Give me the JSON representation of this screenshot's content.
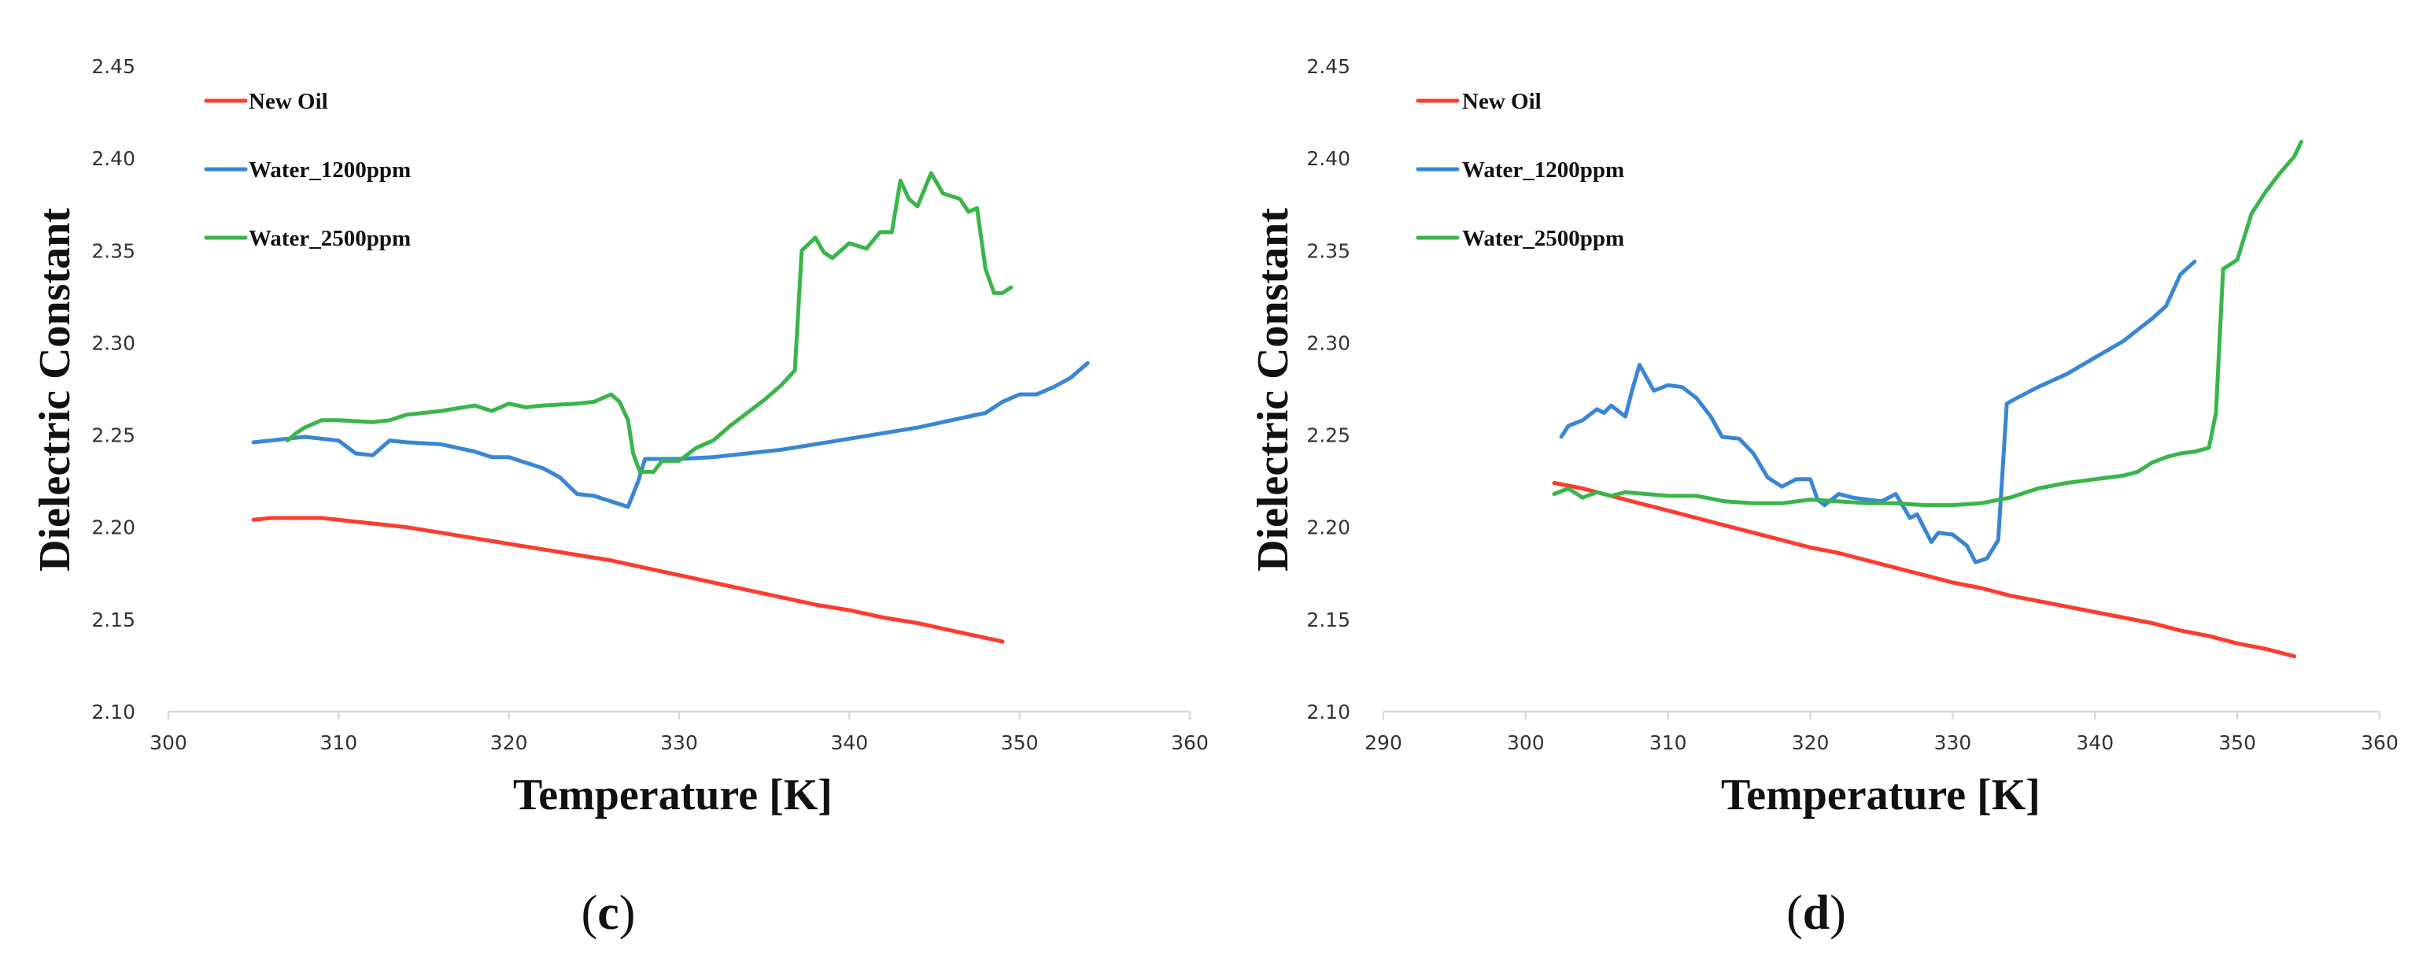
{
  "colors": {
    "New Oil": "#ff3b30",
    "Water_1200ppm": "#3a86d4",
    "Water_2500ppm": "#39b54a"
  },
  "chart_data": [
    {
      "type": "line",
      "panel_label": "c",
      "xlabel": "Temperature [K]",
      "ylabel": "Dielectric Constant",
      "xlim": [
        300,
        360
      ],
      "ylim": [
        2.1,
        2.45
      ],
      "xticks": [
        "300",
        "310",
        "320",
        "330",
        "340",
        "350",
        "360"
      ],
      "yticks": [
        "2.10",
        "2.15",
        "2.20",
        "2.25",
        "2.30",
        "2.35",
        "2.40",
        "2.45"
      ],
      "legend_position": "top-left",
      "series": [
        {
          "name": "New Oil",
          "points": [
            [
              305,
              2.204
            ],
            [
              306,
              2.205
            ],
            [
              307,
              2.205
            ],
            [
              308,
              2.205
            ],
            [
              309,
              2.205
            ],
            [
              310,
              2.204
            ],
            [
              312,
              2.202
            ],
            [
              314,
              2.2
            ],
            [
              316,
              2.197
            ],
            [
              318,
              2.194
            ],
            [
              320,
              2.191
            ],
            [
              322,
              2.188
            ],
            [
              324,
              2.185
            ],
            [
              326,
              2.182
            ],
            [
              328,
              2.178
            ],
            [
              330,
              2.174
            ],
            [
              332,
              2.17
            ],
            [
              334,
              2.166
            ],
            [
              336,
              2.162
            ],
            [
              338,
              2.158
            ],
            [
              340,
              2.155
            ],
            [
              342,
              2.151
            ],
            [
              344,
              2.148
            ],
            [
              346,
              2.144
            ],
            [
              348,
              2.14
            ],
            [
              349,
              2.138
            ]
          ]
        },
        {
          "name": "Water_1200ppm",
          "points": [
            [
              305,
              2.246
            ],
            [
              306,
              2.247
            ],
            [
              307,
              2.248
            ],
            [
              308,
              2.249
            ],
            [
              309,
              2.248
            ],
            [
              310,
              2.247
            ],
            [
              311,
              2.24
            ],
            [
              312,
              2.239
            ],
            [
              313,
              2.247
            ],
            [
              314,
              2.246
            ],
            [
              316,
              2.245
            ],
            [
              318,
              2.241
            ],
            [
              319,
              2.238
            ],
            [
              320,
              2.238
            ],
            [
              322,
              2.232
            ],
            [
              323,
              2.227
            ],
            [
              324,
              2.218
            ],
            [
              325,
              2.217
            ],
            [
              326,
              2.214
            ],
            [
              327,
              2.211
            ],
            [
              327.6,
              2.225
            ],
            [
              328,
              2.237
            ],
            [
              330,
              2.237
            ],
            [
              332,
              2.238
            ],
            [
              334,
              2.24
            ],
            [
              336,
              2.242
            ],
            [
              338,
              2.245
            ],
            [
              340,
              2.248
            ],
            [
              342,
              2.251
            ],
            [
              344,
              2.254
            ],
            [
              346,
              2.258
            ],
            [
              348,
              2.262
            ],
            [
              349,
              2.268
            ],
            [
              350,
              2.272
            ],
            [
              351,
              2.272
            ],
            [
              352,
              2.276
            ],
            [
              353,
              2.281
            ],
            [
              354,
              2.289
            ]
          ]
        },
        {
          "name": "Water_2500ppm",
          "points": [
            [
              307,
              2.247
            ],
            [
              307.5,
              2.251
            ],
            [
              308,
              2.254
            ],
            [
              309,
              2.258
            ],
            [
              310,
              2.258
            ],
            [
              312,
              2.257
            ],
            [
              313,
              2.258
            ],
            [
              314,
              2.261
            ],
            [
              316,
              2.263
            ],
            [
              318,
              2.266
            ],
            [
              319,
              2.263
            ],
            [
              320,
              2.267
            ],
            [
              321,
              2.265
            ],
            [
              322,
              2.266
            ],
            [
              324,
              2.267
            ],
            [
              325,
              2.268
            ],
            [
              326,
              2.272
            ],
            [
              326.5,
              2.268
            ],
            [
              327,
              2.258
            ],
            [
              327.3,
              2.24
            ],
            [
              327.7,
              2.23
            ],
            [
              328.5,
              2.23
            ],
            [
              329,
              2.236
            ],
            [
              330,
              2.236
            ],
            [
              331,
              2.243
            ],
            [
              332,
              2.247
            ],
            [
              333,
              2.255
            ],
            [
              334,
              2.262
            ],
            [
              335,
              2.269
            ],
            [
              336,
              2.277
            ],
            [
              336.8,
              2.285
            ],
            [
              337.2,
              2.35
            ],
            [
              338,
              2.357
            ],
            [
              338.5,
              2.349
            ],
            [
              339,
              2.346
            ],
            [
              340,
              2.354
            ],
            [
              341,
              2.351
            ],
            [
              341.8,
              2.36
            ],
            [
              342.5,
              2.36
            ],
            [
              343,
              2.388
            ],
            [
              343.5,
              2.378
            ],
            [
              344,
              2.374
            ],
            [
              344.8,
              2.392
            ],
            [
              345.5,
              2.381
            ],
            [
              346.5,
              2.378
            ],
            [
              347,
              2.371
            ],
            [
              347.5,
              2.373
            ],
            [
              348,
              2.34
            ],
            [
              348.5,
              2.327
            ],
            [
              349,
              2.327
            ],
            [
              349.5,
              2.33
            ]
          ]
        }
      ]
    },
    {
      "type": "line",
      "panel_label": "d",
      "xlabel": "Temperature [K]",
      "ylabel": "Dielectric Constant",
      "xlim": [
        290,
        360
      ],
      "ylim": [
        2.1,
        2.45
      ],
      "xticks": [
        "290",
        "300",
        "310",
        "320",
        "330",
        "340",
        "350",
        "360"
      ],
      "yticks": [
        "2.10",
        "2.15",
        "2.20",
        "2.25",
        "2.30",
        "2.35",
        "2.40",
        "2.45"
      ],
      "legend_position": "top-left",
      "series": [
        {
          "name": "New Oil",
          "points": [
            [
              302,
              2.224
            ],
            [
              304,
              2.221
            ],
            [
              306,
              2.217
            ],
            [
              308,
              2.213
            ],
            [
              310,
              2.209
            ],
            [
              312,
              2.205
            ],
            [
              314,
              2.201
            ],
            [
              316,
              2.197
            ],
            [
              318,
              2.193
            ],
            [
              320,
              2.189
            ],
            [
              322,
              2.186
            ],
            [
              324,
              2.182
            ],
            [
              326,
              2.178
            ],
            [
              328,
              2.174
            ],
            [
              330,
              2.17
            ],
            [
              332,
              2.167
            ],
            [
              334,
              2.163
            ],
            [
              336,
              2.16
            ],
            [
              338,
              2.157
            ],
            [
              340,
              2.154
            ],
            [
              342,
              2.151
            ],
            [
              344,
              2.148
            ],
            [
              346,
              2.144
            ],
            [
              348,
              2.141
            ],
            [
              350,
              2.137
            ],
            [
              352,
              2.134
            ],
            [
              354,
              2.13
            ]
          ]
        },
        {
          "name": "Water_1200ppm",
          "points": [
            [
              302.5,
              2.249
            ],
            [
              303,
              2.255
            ],
            [
              304,
              2.258
            ],
            [
              305,
              2.264
            ],
            [
              305.5,
              2.262
            ],
            [
              306,
              2.266
            ],
            [
              307,
              2.26
            ],
            [
              307.5,
              2.275
            ],
            [
              308,
              2.288
            ],
            [
              309,
              2.274
            ],
            [
              310,
              2.277
            ],
            [
              311,
              2.276
            ],
            [
              312,
              2.27
            ],
            [
              313,
              2.26
            ],
            [
              313.8,
              2.249
            ],
            [
              315,
              2.248
            ],
            [
              316,
              2.24
            ],
            [
              317,
              2.227
            ],
            [
              318,
              2.222
            ],
            [
              319,
              2.226
            ],
            [
              320,
              2.226
            ],
            [
              320.5,
              2.215
            ],
            [
              321,
              2.212
            ],
            [
              322,
              2.218
            ],
            [
              323,
              2.216
            ],
            [
              324,
              2.215
            ],
            [
              325,
              2.214
            ],
            [
              326,
              2.218
            ],
            [
              327,
              2.205
            ],
            [
              327.5,
              2.207
            ],
            [
              328.5,
              2.192
            ],
            [
              329,
              2.197
            ],
            [
              330,
              2.196
            ],
            [
              331,
              2.19
            ],
            [
              331.6,
              2.181
            ],
            [
              332.4,
              2.183
            ],
            [
              333.2,
              2.193
            ],
            [
              333.8,
              2.267
            ],
            [
              334.5,
              2.27
            ],
            [
              336,
              2.276
            ],
            [
              338,
              2.283
            ],
            [
              340,
              2.292
            ],
            [
              342,
              2.301
            ],
            [
              343,
              2.307
            ],
            [
              344,
              2.313
            ],
            [
              345,
              2.32
            ],
            [
              346,
              2.337
            ],
            [
              347,
              2.344
            ]
          ]
        },
        {
          "name": "Water_2500ppm",
          "points": [
            [
              302,
              2.218
            ],
            [
              303,
              2.221
            ],
            [
              304,
              2.216
            ],
            [
              305,
              2.219
            ],
            [
              306,
              2.217
            ],
            [
              307,
              2.219
            ],
            [
              310,
              2.217
            ],
            [
              312,
              2.217
            ],
            [
              314,
              2.214
            ],
            [
              316,
              2.213
            ],
            [
              318,
              2.213
            ],
            [
              320,
              2.215
            ],
            [
              322,
              2.214
            ],
            [
              324,
              2.213
            ],
            [
              326,
              2.213
            ],
            [
              328,
              2.212
            ],
            [
              330,
              2.212
            ],
            [
              332,
              2.213
            ],
            [
              334,
              2.216
            ],
            [
              336,
              2.221
            ],
            [
              338,
              2.224
            ],
            [
              340,
              2.226
            ],
            [
              342,
              2.228
            ],
            [
              343,
              2.23
            ],
            [
              344,
              2.235
            ],
            [
              345,
              2.238
            ],
            [
              346,
              2.24
            ],
            [
              347,
              2.241
            ],
            [
              348,
              2.243
            ],
            [
              348.5,
              2.262
            ],
            [
              349,
              2.34
            ],
            [
              350,
              2.345
            ],
            [
              351,
              2.37
            ],
            [
              352,
              2.382
            ],
            [
              353,
              2.392
            ],
            [
              354,
              2.401
            ],
            [
              354.5,
              2.409
            ]
          ]
        }
      ]
    }
  ]
}
